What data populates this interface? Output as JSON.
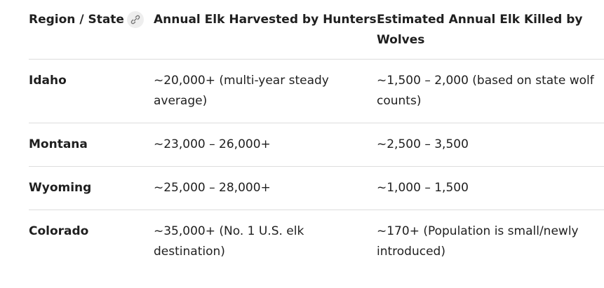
{
  "table": {
    "headers": [
      "Region / State",
      "Annual Elk Harvested by Hunters",
      "Estimated Annual Elk Killed by Wolves"
    ],
    "rows": [
      [
        "Idaho",
        "~20,000+ (multi-year steady average)",
        "~1,500 – 2,000 (based on state wolf counts)"
      ],
      [
        "Montana",
        "~23,000 – 26,000+",
        "~2,500 – 3,500"
      ],
      [
        "Wyoming",
        "~25,000 – 28,000+",
        "~1,000 – 1,500"
      ],
      [
        "Colorado",
        "~35,000+ (No. 1 U.S. elk destination)",
        "~170+ (Population is small/newly introduced)"
      ]
    ]
  }
}
